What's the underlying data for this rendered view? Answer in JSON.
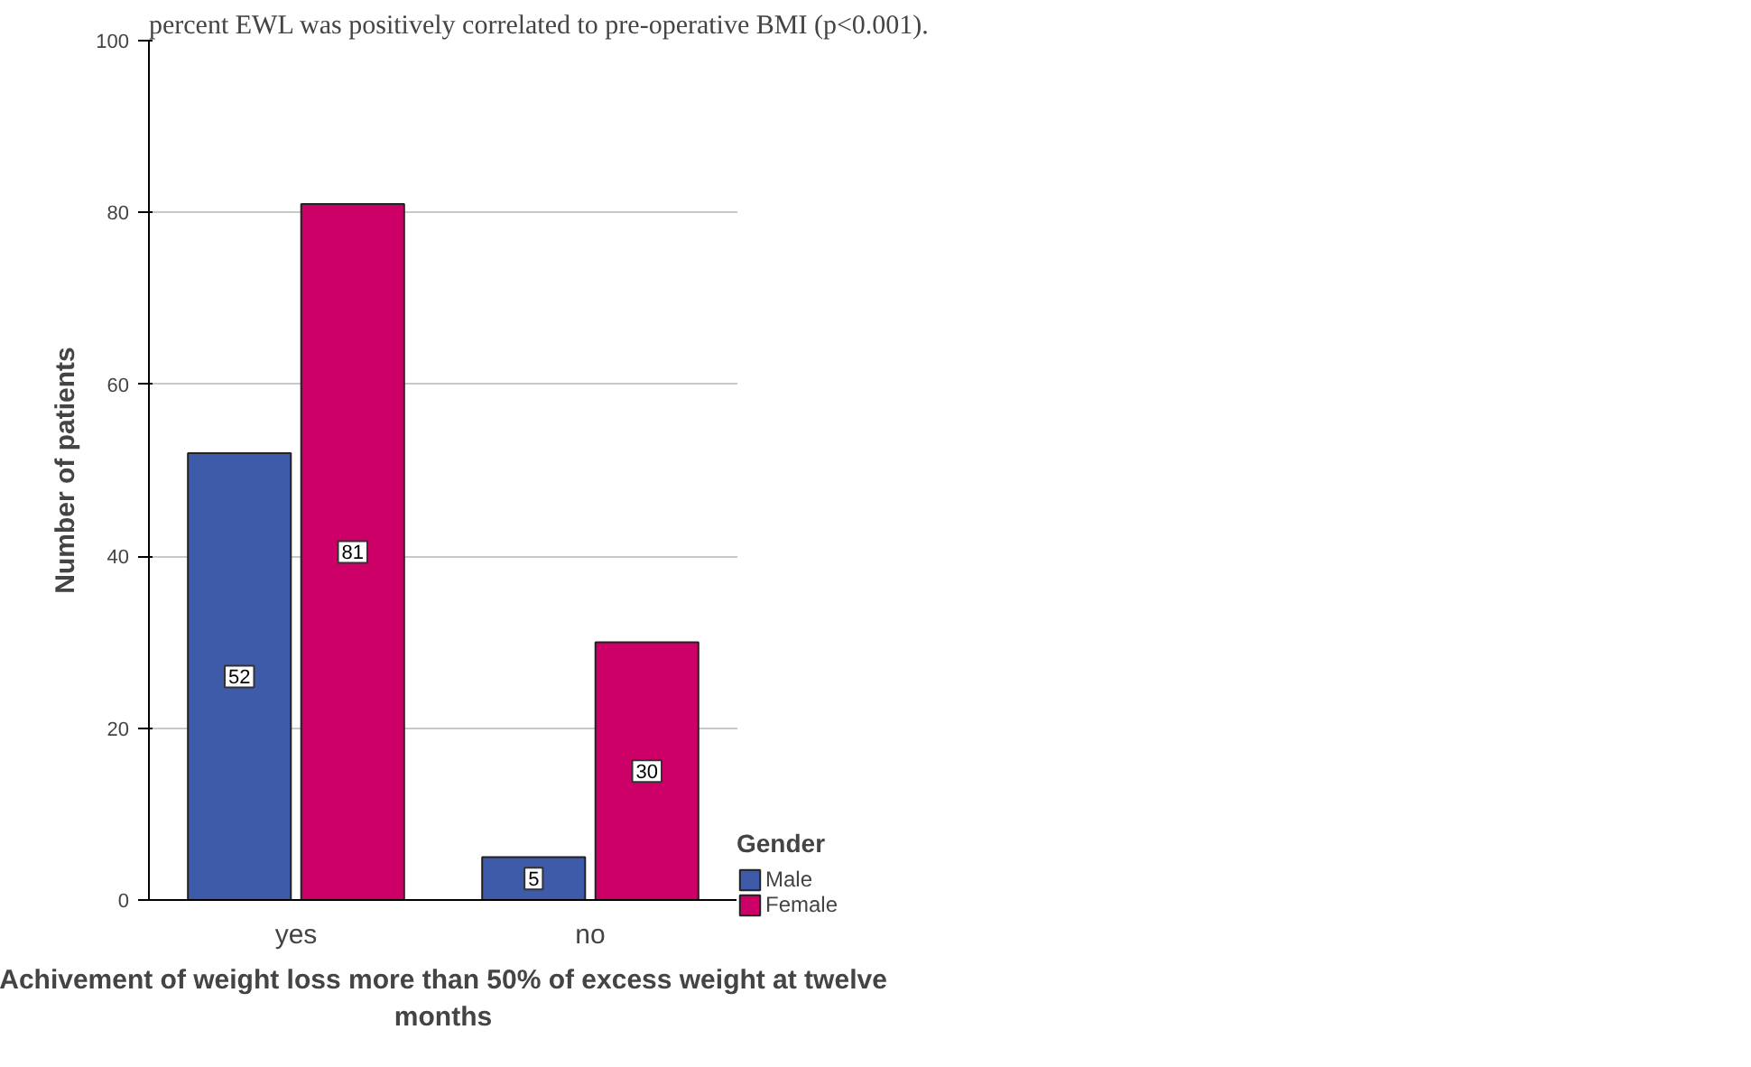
{
  "chart_data": {
    "type": "bar",
    "xlabel": "Achivement of weight loss more than 50% of excess weight at twelve\nmonths",
    "ylabel": "Number of patients",
    "legend_title": "Gender",
    "categories": [
      "yes",
      "no"
    ],
    "series": [
      {
        "name": "Male",
        "color": "#3e5ba9",
        "values": [
          52,
          5
        ]
      },
      {
        "name": "Female",
        "color": "#cc0066",
        "values": [
          81,
          30
        ]
      }
    ],
    "ylim": [
      0,
      100
    ],
    "yticks": [
      0,
      20,
      40,
      60,
      80,
      100
    ],
    "grid": "y",
    "legend": "right",
    "data_labels": true,
    "annotations": [
      "percent EWL was positively correlated to pre-operative BMI (p<0.001)."
    ]
  }
}
